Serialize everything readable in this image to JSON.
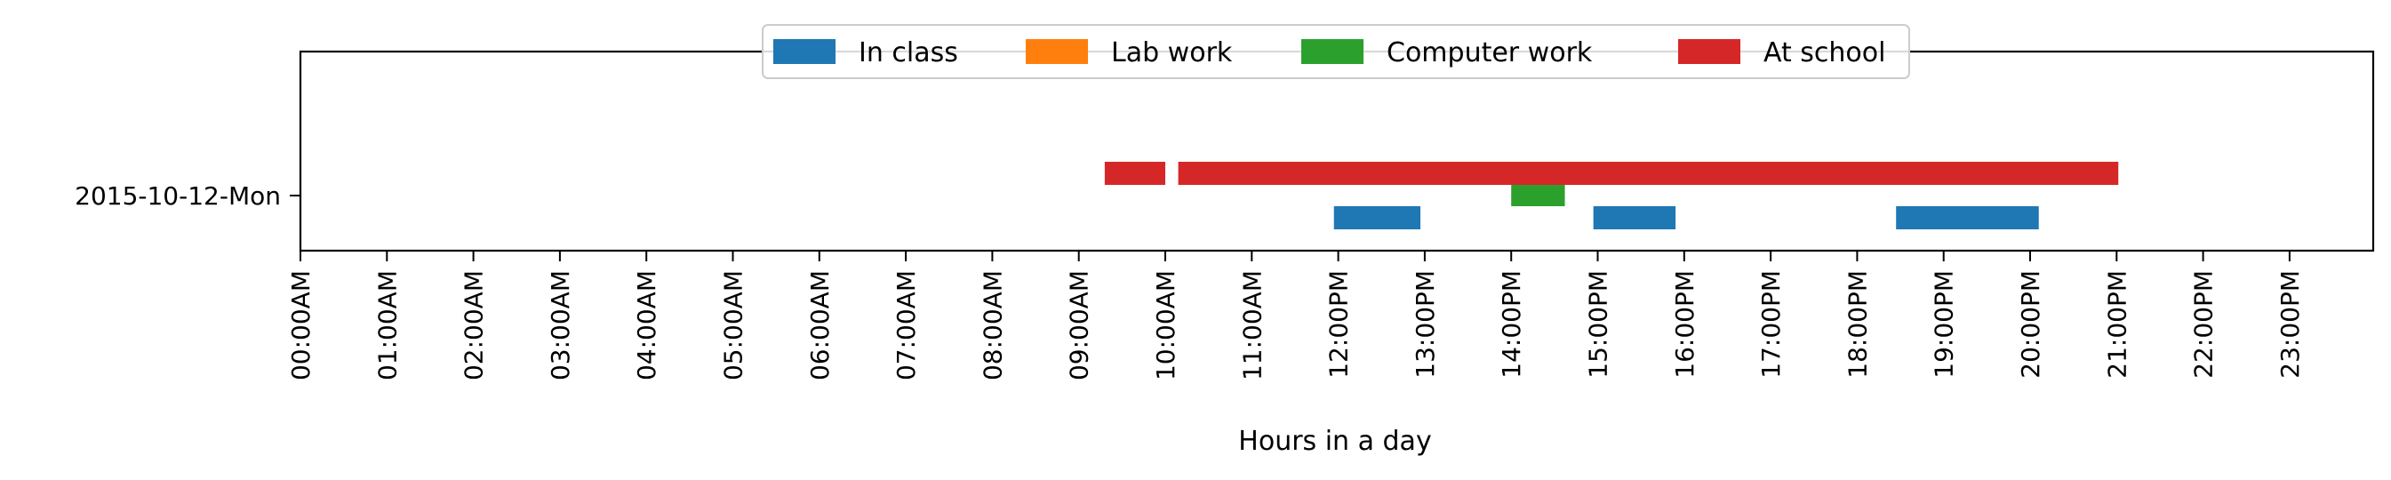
{
  "chart_data": {
    "type": "timeline",
    "title": "",
    "xlabel": "Hours in a day",
    "ylabel": "",
    "xlim": [
      0,
      24
    ],
    "grid": false,
    "legend_position": "top-center",
    "categories": [
      "2015-10-12-Mon"
    ],
    "x_tick_labels": [
      "00:00AM",
      "01:00AM",
      "02:00AM",
      "03:00AM",
      "04:00AM",
      "05:00AM",
      "06:00AM",
      "07:00AM",
      "08:00AM",
      "09:00AM",
      "10:00AM",
      "11:00AM",
      "12:00PM",
      "13:00PM",
      "14:00PM",
      "15:00PM",
      "16:00PM",
      "17:00PM",
      "18:00PM",
      "19:00PM",
      "20:00PM",
      "21:00PM",
      "22:00PM",
      "23:00PM"
    ],
    "series": [
      {
        "name": "In class",
        "color": "#1f77b4",
        "lane": "bottom",
        "intervals": [
          [
            11.95,
            12.95
          ],
          [
            14.95,
            15.9
          ],
          [
            18.45,
            20.1
          ]
        ]
      },
      {
        "name": "Lab work",
        "color": "#ff7f0e",
        "lane": "lower-middle",
        "intervals": []
      },
      {
        "name": "Computer work",
        "color": "#2ca02c",
        "lane": "upper-middle",
        "intervals": [
          [
            14.0,
            14.62
          ]
        ]
      },
      {
        "name": "At school",
        "color": "#d62728",
        "lane": "top",
        "intervals": [
          [
            9.3,
            10.0
          ],
          [
            10.15,
            21.02
          ]
        ]
      }
    ]
  }
}
